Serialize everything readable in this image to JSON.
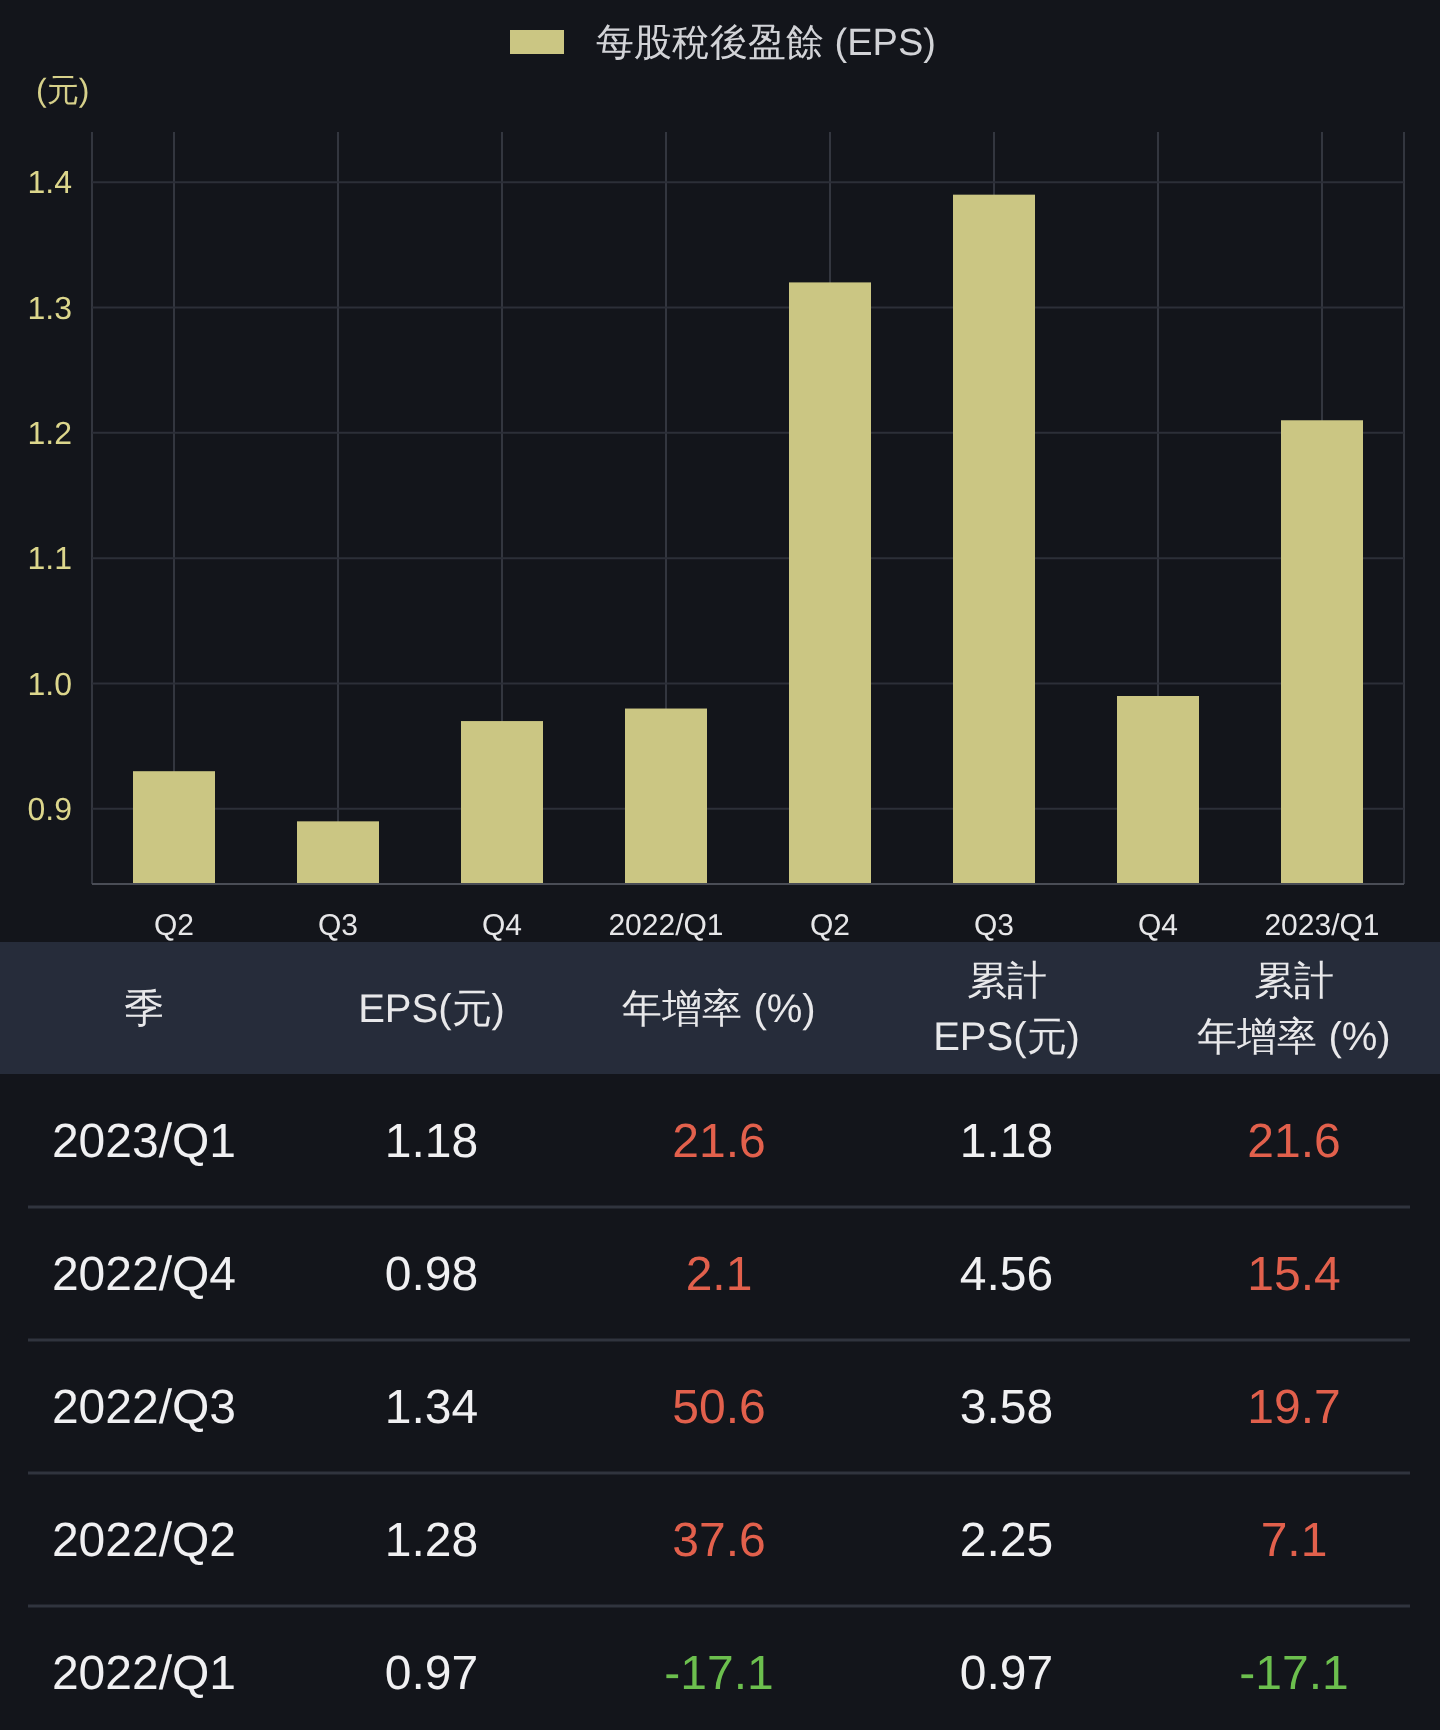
{
  "chart_data": [
    {
      "type": "bar",
      "categories": [
        "Q2",
        "Q3",
        "Q4",
        "2022/Q1",
        "Q2",
        "Q3",
        "Q4",
        "2023/Q1"
      ],
      "series": [
        {
          "name": "每股稅後盈餘 (EPS)",
          "color": "#cbc683",
          "values": [
            0.93,
            0.89,
            0.97,
            0.98,
            1.32,
            1.39,
            0.99,
            1.21
          ]
        }
      ],
      "ylabel": "(元)",
      "ylim": [
        0.84,
        1.44
      ],
      "yticks": [
        0.9,
        {
          "value": 1,
          "label": "1.0"
        },
        1.1,
        1.2,
        1.3,
        1.4
      ],
      "grid": true,
      "legend": "top"
    },
    {
      "type": "other",
      "xlabel": "季",
      "categories": [
        "2023/Q1",
        "2022/Q4",
        "2022/Q3",
        "2022/Q2",
        "2022/Q1"
      ],
      "series": [
        {
          "name": "EPS(元)",
          "color": "#f0f0f2",
          "values": [
            1.18,
            0.98,
            1.34,
            1.28,
            0.97
          ]
        },
        {
          "name": "年增率 (%)",
          "colors": [
            "#e2604c",
            "#e2604c",
            "#e2604c",
            "#e2604c",
            "#6cbf4e"
          ],
          "values": [
            21.6,
            2.1,
            50.6,
            37.6,
            -17.1
          ]
        },
        {
          "name": "累計EPS(元)",
          "color": "#f0f0f2",
          "values": [
            1.18,
            4.56,
            3.58,
            2.25,
            0.97
          ]
        },
        {
          "name": "累計年增率 (%)",
          "colors": [
            "#e2604c",
            "#e2604c",
            "#e2604c",
            "#e2604c",
            "#6cbf4e"
          ],
          "values": [
            21.6,
            15.4,
            19.7,
            7.1,
            -17.1
          ]
        }
      ],
      "data_labels": true
    }
  ]
}
